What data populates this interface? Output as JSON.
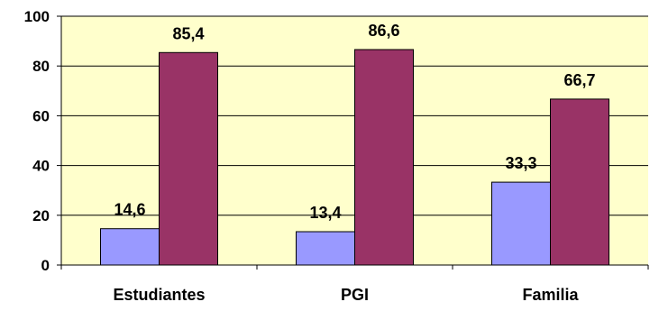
{
  "chart_data": {
    "type": "bar",
    "title": "",
    "xlabel": "",
    "ylabel": "",
    "categories": [
      "Estudiantes",
      "PGI",
      "Familia"
    ],
    "series": [
      {
        "values": [
          14.6,
          13.4,
          33.3
        ],
        "labels": [
          "14,6",
          "13,4",
          "33,3"
        ],
        "color": "#9999ff"
      },
      {
        "values": [
          85.4,
          86.6,
          66.7
        ],
        "labels": [
          "85,4",
          "86,6",
          "66,7"
        ],
        "color": "#993366"
      }
    ],
    "ylim": [
      0,
      100
    ],
    "yticks": [
      0,
      20,
      40,
      60,
      80,
      100
    ],
    "ytick_labels": [
      "0",
      "20",
      "40",
      "60",
      "80",
      "100"
    ],
    "grid": true,
    "plot_background": "#ffffcc"
  }
}
